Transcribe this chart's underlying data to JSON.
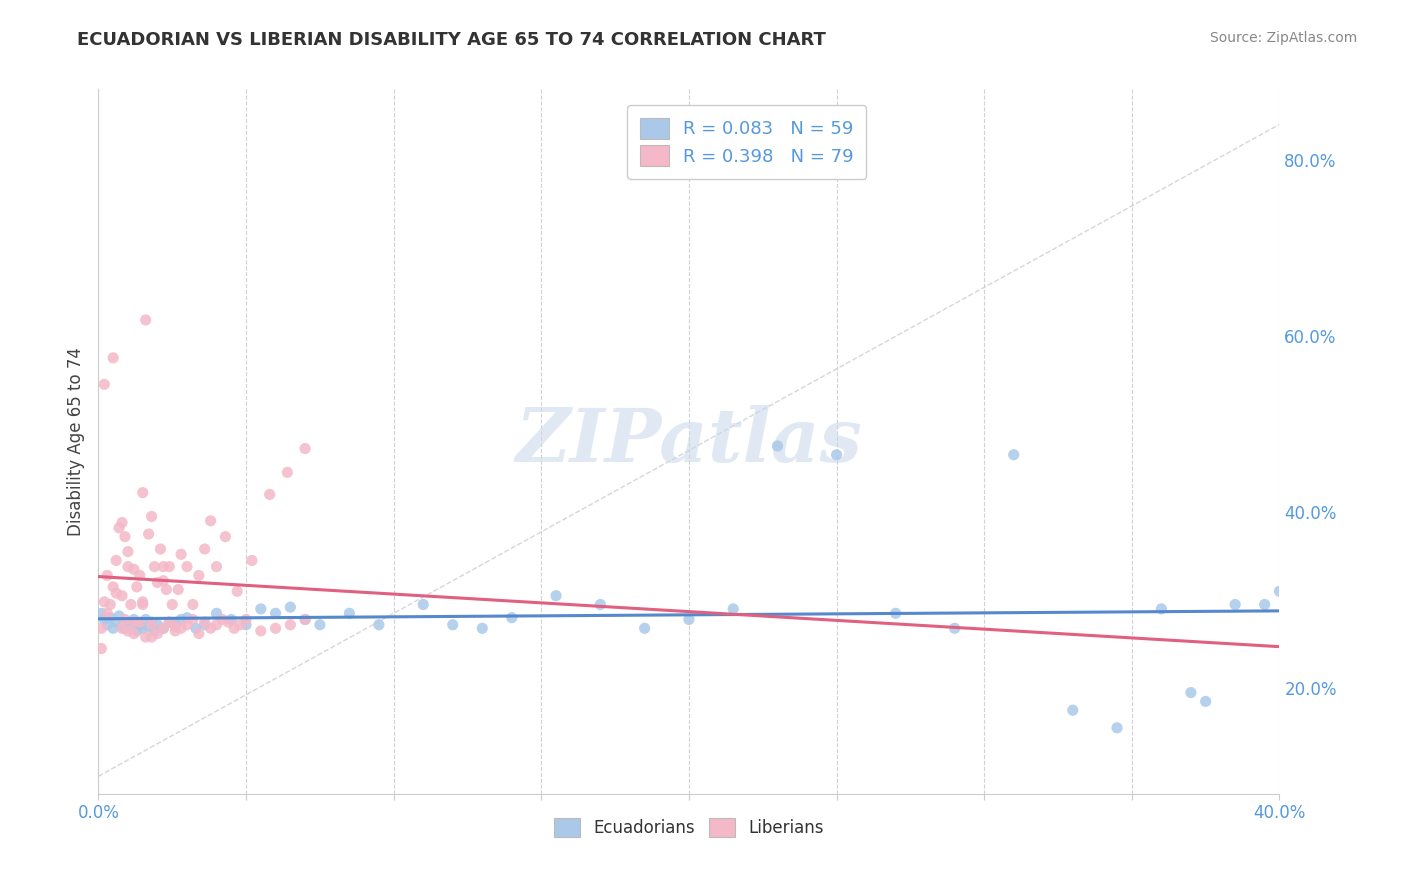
{
  "title": "ECUADORIAN VS LIBERIAN DISABILITY AGE 65 TO 74 CORRELATION CHART",
  "source_text": "Source: ZipAtlas.com",
  "xlim": [
    0.0,
    0.4
  ],
  "ylim": [
    0.08,
    0.88
  ],
  "y_tick_vals": [
    0.2,
    0.4,
    0.6,
    0.8
  ],
  "y_tick_labels": [
    "20.0%",
    "40.0%",
    "60.0%",
    "80.0%"
  ],
  "x_tick_vals": [
    0.0,
    0.05,
    0.1,
    0.15,
    0.2,
    0.25,
    0.3,
    0.35,
    0.4
  ],
  "x_tick_labels": [
    "0.0%",
    "",
    "",
    "",
    "",
    "",
    "",
    "",
    "40.0%"
  ],
  "legend_entries": [
    {
      "label": "R = 0.083   N = 59",
      "color": "#aac9e8"
    },
    {
      "label": "R = 0.398   N = 79",
      "color": "#f4b8c8"
    }
  ],
  "legend_labels_bottom": [
    "Ecuadorians",
    "Liberians"
  ],
  "watermark": "ZIPatlas",
  "ecu_color": "#aac9e8",
  "ecu_line_color": "#5588cc",
  "lib_color": "#f4b8c8",
  "lib_line_color": "#e06080",
  "ref_line_color": "#cccccc",
  "bg_color": "#ffffff",
  "grid_color": "#cccccc",
  "title_fontsize": 13,
  "axis_label_color": "#5599dd",
  "ylabel": "Disability Age 65 to 74",
  "ecuadorians_x": [
    0.001,
    0.002,
    0.003,
    0.004,
    0.005,
    0.006,
    0.007,
    0.008,
    0.009,
    0.01,
    0.011,
    0.012,
    0.013,
    0.014,
    0.015,
    0.016,
    0.017,
    0.018,
    0.019,
    0.02,
    0.022,
    0.024,
    0.026,
    0.028,
    0.03,
    0.033,
    0.036,
    0.04,
    0.045,
    0.05,
    0.055,
    0.06,
    0.065,
    0.07,
    0.075,
    0.085,
    0.095,
    0.11,
    0.12,
    0.13,
    0.14,
    0.155,
    0.17,
    0.185,
    0.2,
    0.215,
    0.23,
    0.25,
    0.27,
    0.29,
    0.31,
    0.33,
    0.345,
    0.36,
    0.37,
    0.375,
    0.385,
    0.395,
    0.4
  ],
  "ecuadorians_y": [
    0.285,
    0.278,
    0.272,
    0.28,
    0.268,
    0.275,
    0.282,
    0.27,
    0.268,
    0.275,
    0.272,
    0.278,
    0.265,
    0.272,
    0.268,
    0.278,
    0.27,
    0.275,
    0.265,
    0.272,
    0.268,
    0.275,
    0.272,
    0.278,
    0.28,
    0.268,
    0.272,
    0.285,
    0.278,
    0.272,
    0.29,
    0.285,
    0.292,
    0.278,
    0.272,
    0.285,
    0.272,
    0.295,
    0.272,
    0.268,
    0.28,
    0.305,
    0.295,
    0.268,
    0.278,
    0.29,
    0.475,
    0.465,
    0.285,
    0.268,
    0.465,
    0.175,
    0.155,
    0.29,
    0.195,
    0.185,
    0.295,
    0.295,
    0.31
  ],
  "liberians_x": [
    0.001,
    0.002,
    0.003,
    0.004,
    0.005,
    0.006,
    0.007,
    0.008,
    0.009,
    0.01,
    0.011,
    0.012,
    0.013,
    0.014,
    0.015,
    0.016,
    0.017,
    0.018,
    0.019,
    0.02,
    0.021,
    0.022,
    0.023,
    0.024,
    0.025,
    0.026,
    0.027,
    0.028,
    0.03,
    0.032,
    0.034,
    0.036,
    0.038,
    0.04,
    0.043,
    0.047,
    0.052,
    0.058,
    0.064,
    0.07,
    0.008,
    0.01,
    0.012,
    0.014,
    0.016,
    0.018,
    0.02,
    0.022,
    0.024,
    0.026,
    0.028,
    0.03,
    0.032,
    0.034,
    0.036,
    0.038,
    0.04,
    0.042,
    0.044,
    0.046,
    0.048,
    0.05,
    0.055,
    0.06,
    0.065,
    0.07,
    0.015,
    0.01,
    0.008,
    0.005,
    0.003,
    0.002,
    0.001,
    0.006,
    0.009,
    0.012,
    0.015,
    0.018,
    0.022
  ],
  "liberians_y": [
    0.268,
    0.545,
    0.328,
    0.295,
    0.575,
    0.345,
    0.382,
    0.305,
    0.372,
    0.338,
    0.295,
    0.275,
    0.315,
    0.328,
    0.295,
    0.618,
    0.375,
    0.395,
    0.338,
    0.32,
    0.358,
    0.338,
    0.312,
    0.338,
    0.295,
    0.265,
    0.312,
    0.352,
    0.338,
    0.295,
    0.328,
    0.358,
    0.39,
    0.338,
    0.372,
    0.31,
    0.345,
    0.42,
    0.445,
    0.472,
    0.268,
    0.265,
    0.262,
    0.275,
    0.258,
    0.272,
    0.262,
    0.268,
    0.275,
    0.27,
    0.268,
    0.272,
    0.278,
    0.262,
    0.275,
    0.268,
    0.272,
    0.278,
    0.275,
    0.268,
    0.272,
    0.278,
    0.265,
    0.268,
    0.272,
    0.278,
    0.422,
    0.355,
    0.388,
    0.315,
    0.285,
    0.298,
    0.245,
    0.308,
    0.278,
    0.335,
    0.298,
    0.258,
    0.322
  ]
}
